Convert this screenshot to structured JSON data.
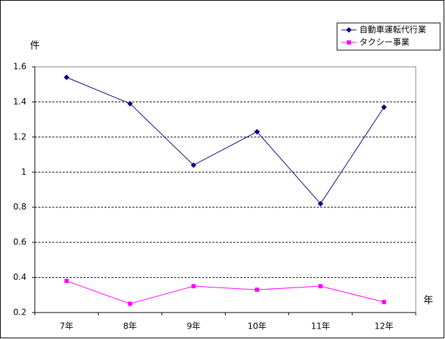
{
  "chart_data": {
    "type": "line",
    "y_label": "件",
    "x_label": "年",
    "categories": [
      "7年",
      "8年",
      "9年",
      "10年",
      "11年",
      "12年"
    ],
    "series": [
      {
        "name": "自動車運転代行業",
        "color": "#000080",
        "marker": "diamond",
        "values": [
          1.54,
          1.39,
          1.04,
          1.23,
          0.82,
          1.37
        ]
      },
      {
        "name": "タクシー事業",
        "color": "#ff00ff",
        "marker": "square",
        "values": [
          0.38,
          0.25,
          0.35,
          0.33,
          0.35,
          0.26
        ]
      }
    ],
    "ylim": [
      0.2,
      1.6
    ],
    "yticks": [
      0.2,
      0.4,
      0.6,
      0.8,
      1,
      1.2,
      1.4,
      1.6
    ],
    "grid": true,
    "legend": "top-right"
  }
}
